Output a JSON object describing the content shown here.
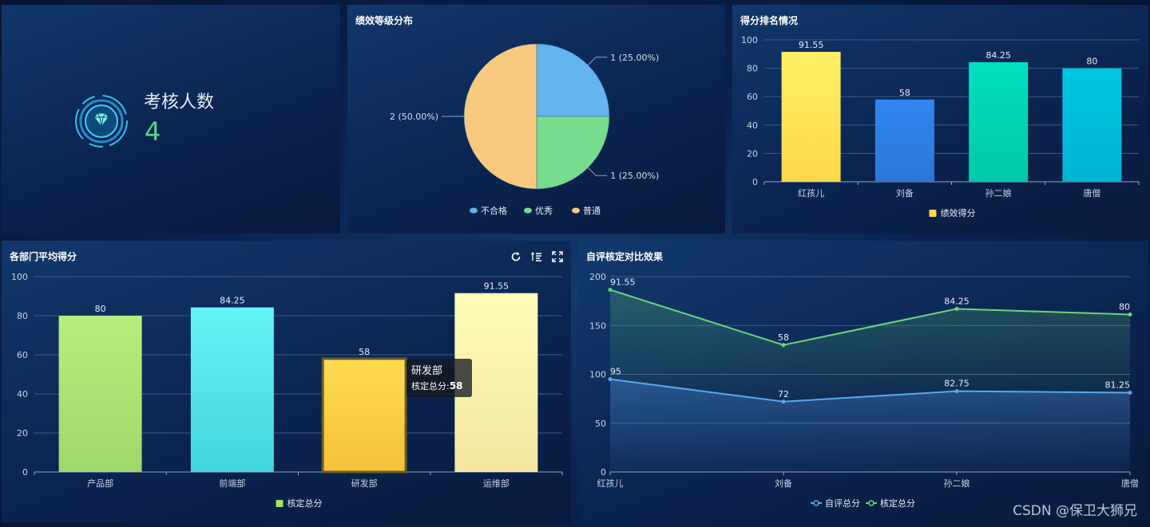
{
  "kpi": {
    "label": "考核人数",
    "value": "4"
  },
  "panels": {
    "pie_title": "绩效等级分布",
    "rank_title": "得分排名情况",
    "dept_title": "各部门平均得分",
    "compare_title": "自评核定对比效果"
  },
  "tooltip": {
    "title": "研发部",
    "row": "核定总分:",
    "value": "58"
  },
  "watermark": "CSDN @保卫大狮兄",
  "colors": {
    "accent_green": "#59d18c",
    "grid": "#3d5a85"
  },
  "chart_data": [
    {
      "type": "pie",
      "title": "绩效等级分布",
      "labels": [
        "不合格",
        "优秀",
        "普通"
      ],
      "values": [
        1,
        1,
        2
      ],
      "percent_labels": [
        "1 (25.00%)",
        "1 (25.00%)",
        "2 (50.00%)"
      ],
      "colors": [
        "#64b4f0",
        "#78dc8e",
        "#f7c97e"
      ],
      "legend": "bottom-center"
    },
    {
      "type": "bar",
      "title": "得分排名情况",
      "categories": [
        "红孩儿",
        "刘备",
        "孙二娘",
        "唐僧"
      ],
      "series": [
        {
          "name": "绩效得分",
          "values": [
            91.55,
            58,
            84.25,
            80
          ]
        }
      ],
      "value_labels": [
        "91.55",
        "58",
        "84.25",
        "80"
      ],
      "ylim": [
        0,
        100
      ],
      "yticks": [
        "0",
        "20",
        "40",
        "60",
        "80",
        "100"
      ],
      "bar_colors": [
        [
          "#fff066",
          "#ffd84a"
        ],
        [
          "#2f86ef",
          "#2a78d6"
        ],
        [
          "#00e0c0",
          "#00c8a8"
        ],
        [
          "#00c6e0",
          "#00b4d4"
        ]
      ],
      "legend": "bottom-center",
      "legend_color": "#ffd84a",
      "grid": true
    },
    {
      "type": "bar",
      "title": "各部门平均得分",
      "categories": [
        "产品部",
        "前端部",
        "研发部",
        "运维部"
      ],
      "series": [
        {
          "name": "核定总分",
          "values": [
            80,
            84.25,
            58,
            91.55
          ]
        }
      ],
      "value_labels": [
        "80",
        "84.25",
        "58",
        "91.55"
      ],
      "ylim": [
        0,
        100
      ],
      "yticks": [
        "0",
        "20",
        "40",
        "60",
        "80",
        "100"
      ],
      "bar_colors": [
        [
          "#b4ee7c",
          "#9ed86a"
        ],
        [
          "#64f4f4",
          "#44d4dc"
        ],
        [
          "#ffdc52",
          "#f4c23a"
        ],
        [
          "#fffcb8",
          "#f2e6a0"
        ]
      ],
      "highlight_index": 2,
      "legend": "bottom-center",
      "legend_color": "#a2e26c",
      "grid": true
    },
    {
      "type": "line",
      "title": "自评核定对比效果",
      "categories": [
        "红孩儿",
        "刘备",
        "孙二娘",
        "唐僧"
      ],
      "series": [
        {
          "name": "自评总分",
          "values": [
            95,
            72,
            82.75,
            81.25
          ],
          "labels": [
            "95",
            "72",
            "82.75",
            "81.25"
          ],
          "color": "#5aa8ee"
        },
        {
          "name": "核定总分",
          "values": [
            91.55,
            58,
            84.25,
            80
          ],
          "labels": [
            "91.55",
            "58",
            "84.25",
            "80"
          ],
          "color": "#6ad67a"
        }
      ],
      "stacked": true,
      "area": true,
      "ylim": [
        0,
        200
      ],
      "yticks": [
        "0",
        "50",
        "100",
        "150",
        "200"
      ],
      "legend": "bottom-center",
      "grid": true
    }
  ]
}
